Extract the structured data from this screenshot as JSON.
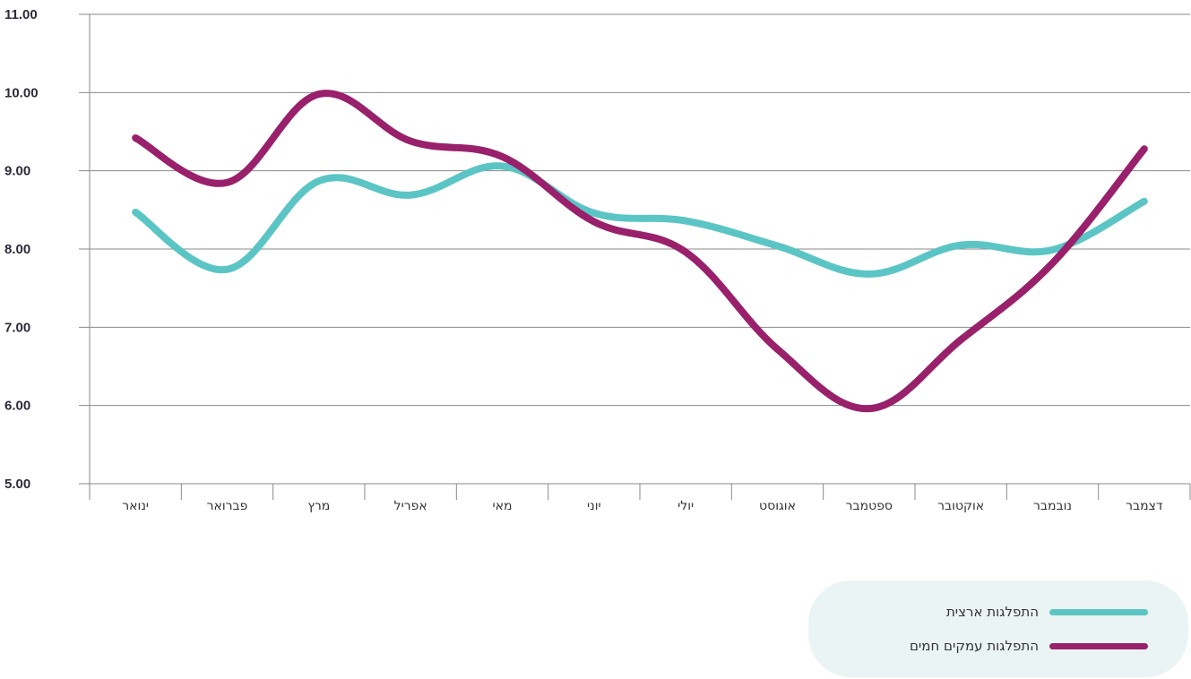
{
  "chart_data": {
    "type": "line",
    "categories": [
      "ינואר",
      "פברואר",
      "מרץ",
      "אפריל",
      "מאי",
      "יוני",
      "יולי",
      "אוגוסט",
      "ספטמבר",
      "אוקטובר",
      "נובמבר",
      "דצמבר"
    ],
    "y_ticks": [
      "5.00",
      "6.00",
      "7.00",
      "8.00",
      "9.00",
      "10.00",
      "11.00"
    ],
    "ylim": [
      5,
      11
    ],
    "grid": "horizontal",
    "legend_position": "bottom-right",
    "series": [
      {
        "name": "התפלגות ארצית",
        "color": "#5bc5c5",
        "values": [
          8.47,
          7.74,
          8.87,
          8.69,
          9.06,
          8.46,
          8.36,
          8.04,
          7.68,
          8.05,
          7.99,
          8.61
        ]
      },
      {
        "name": "התפלגות עמקים חמים",
        "color": "#99206b",
        "values": [
          9.42,
          8.85,
          9.98,
          9.38,
          9.18,
          8.35,
          7.96,
          6.72,
          5.96,
          6.84,
          7.82,
          9.28
        ]
      }
    ]
  }
}
